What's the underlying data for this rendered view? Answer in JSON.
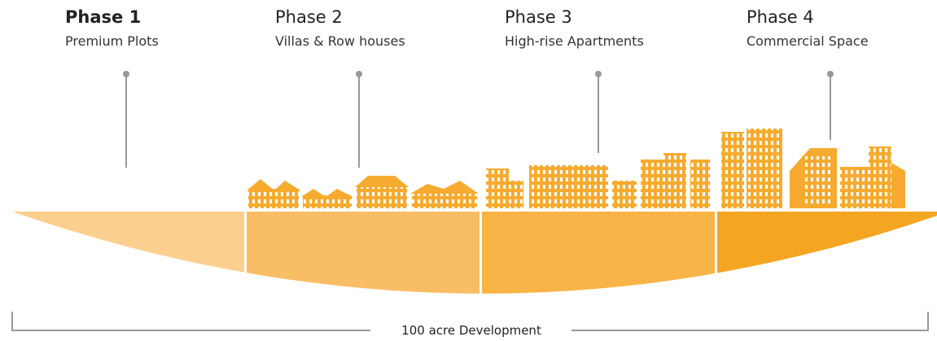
{
  "phases": [
    {
      "title": "Phase 1",
      "subtitle": "Premium Plots"
    },
    {
      "title": "Phase 2",
      "subtitle": "Villas & Row houses"
    },
    {
      "title": "Phase 3",
      "subtitle": "High-rise Apartments"
    },
    {
      "title": "Phase 4",
      "subtitle": "Commercial Space"
    }
  ],
  "footer": "100 acre Development"
}
